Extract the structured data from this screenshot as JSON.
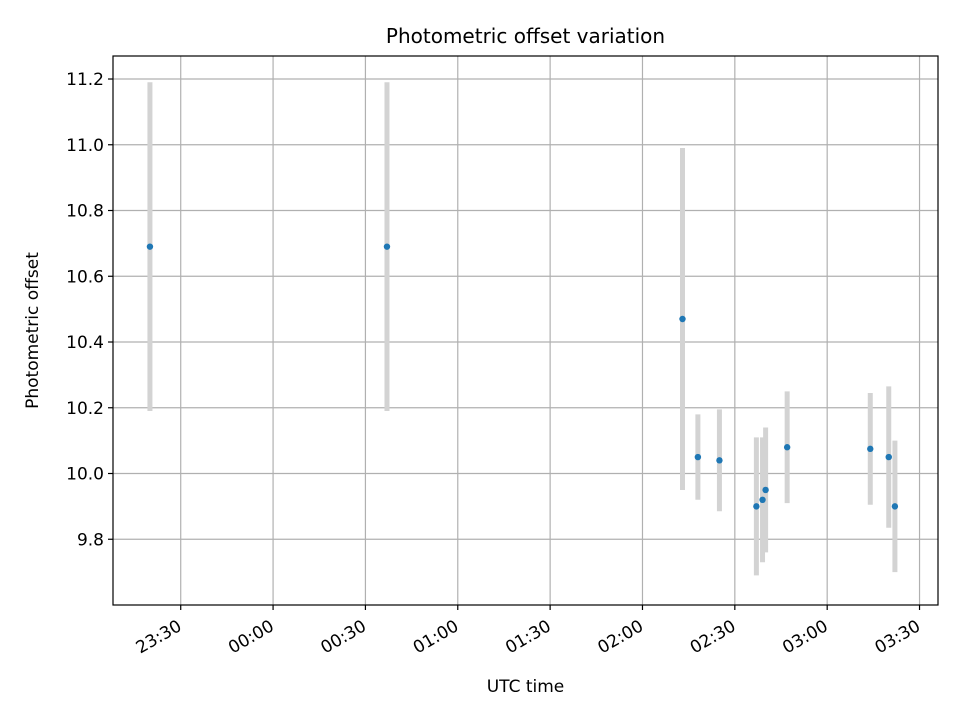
{
  "chart_data": {
    "type": "scatter",
    "title": "Photometric offset variation",
    "xlabel": "UTC time",
    "ylabel": "Photometric offset",
    "x_ticks": [
      "23:30",
      "00:00",
      "00:30",
      "01:00",
      "01:30",
      "02:00",
      "02:30",
      "03:00",
      "03:30"
    ],
    "y_ticks": [
      "9.8",
      "10.0",
      "10.2",
      "10.4",
      "10.6",
      "10.8",
      "11.0",
      "11.2"
    ],
    "xlim": [
      "23:08",
      "03:36"
    ],
    "ylim": [
      9.6,
      11.27
    ],
    "grid": true,
    "legend": "none",
    "marker_color": "#1f77b4",
    "errorbar_color": "#d3d3d3",
    "points": [
      {
        "x": "23:20",
        "y": 10.69,
        "err": 0.5
      },
      {
        "x": "00:37",
        "y": 10.69,
        "err": 0.5
      },
      {
        "x": "02:13",
        "y": 10.47,
        "err": 0.52
      },
      {
        "x": "02:18",
        "y": 10.05,
        "err": 0.13
      },
      {
        "x": "02:25",
        "y": 10.04,
        "err": 0.155
      },
      {
        "x": "02:37",
        "y": 9.9,
        "err": 0.21
      },
      {
        "x": "02:39",
        "y": 9.92,
        "err": 0.19
      },
      {
        "x": "02:40",
        "y": 9.95,
        "err": 0.19
      },
      {
        "x": "02:47",
        "y": 10.08,
        "err": 0.17
      },
      {
        "x": "03:14",
        "y": 10.075,
        "err": 0.17
      },
      {
        "x": "03:20",
        "y": 10.05,
        "err": 0.215
      },
      {
        "x": "03:22",
        "y": 9.9,
        "err": 0.2
      }
    ]
  }
}
